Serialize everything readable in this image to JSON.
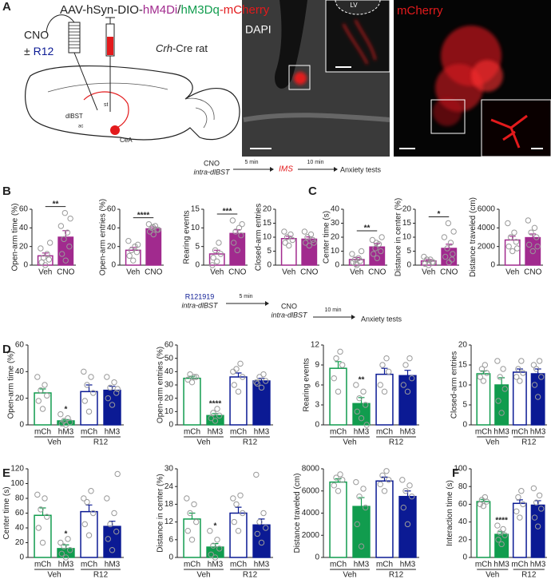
{
  "panel_letters": [
    "A",
    "B",
    "C",
    "D",
    "E",
    "F"
  ],
  "panel_a": {
    "construct": [
      "AAV-hSyn-DIO-",
      "hM4Di",
      "/",
      "hM3Dq",
      "-mCherry"
    ],
    "drug": "CNO",
    "plus_minus": "±",
    "antagonist": "R12",
    "rat": [
      "Crh",
      "-Cre rat"
    ],
    "regions": [
      "dlBST",
      "st",
      "ac",
      "CeA"
    ],
    "stains": [
      "DAPI",
      "mCherry"
    ],
    "ventricle": "LV"
  },
  "timeline_1": {
    "drug": "CNO",
    "route": "intra-dlBST",
    "delay_1": "5 min",
    "stress": "IMS",
    "delay_2": "10 min",
    "tests": "Anxiety tests"
  },
  "timeline_2": {
    "antagonist": "R121919",
    "route_1": "intra-dlBST",
    "delay_1": "5 min",
    "drug": "CNO",
    "route_2": "intra-dlBST",
    "delay_2": "10 min",
    "tests": "Anxiety tests"
  },
  "chart_data": [
    {
      "type": "bar",
      "ylabel": "Open-arm time (%)",
      "categories": [
        "Veh",
        "CNO"
      ],
      "values": [
        10,
        30
      ],
      "errors": [
        3,
        7
      ],
      "points": [
        [
          0,
          3,
          6,
          8,
          12,
          18,
          24
        ],
        [
          5,
          12,
          20,
          28,
          35,
          42,
          50,
          56
        ]
      ],
      "colors": [
        "#a12a8e",
        "#a12a8e"
      ],
      "filled": [
        false,
        true
      ],
      "ylim": [
        0,
        60
      ],
      "yticks": [
        0,
        20,
        40,
        60
      ],
      "annotations": [
        {
          "text": "**",
          "bracket": [
            0,
            1
          ]
        }
      ]
    },
    {
      "type": "bar",
      "ylabel": "Open-arm entries (%)",
      "categories": [
        "Veh",
        "CNO"
      ],
      "values": [
        16,
        39
      ],
      "errors": [
        3,
        2
      ],
      "points": [
        [
          5,
          10,
          14,
          16,
          20,
          26,
          22
        ],
        [
          33,
          36,
          38,
          40,
          42,
          44,
          38,
          41
        ]
      ],
      "colors": [
        "#a12a8e",
        "#a12a8e"
      ],
      "filled": [
        false,
        true
      ],
      "ylim": [
        0,
        60
      ],
      "yticks": [
        0,
        20,
        40,
        60
      ],
      "annotations": [
        {
          "text": "****",
          "bracket": [
            0,
            1
          ]
        }
      ]
    },
    {
      "type": "bar",
      "ylabel": "Rearing events",
      "categories": [
        "Veh",
        "CNO"
      ],
      "values": [
        3,
        8.5
      ],
      "errors": [
        1,
        1
      ],
      "points": [
        [
          1,
          2,
          3,
          4,
          6,
          0
        ],
        [
          4,
          6,
          8,
          9,
          10,
          12,
          11
        ]
      ],
      "colors": [
        "#a12a8e",
        "#a12a8e"
      ],
      "filled": [
        false,
        true
      ],
      "ylim": [
        0,
        15
      ],
      "yticks": [
        0,
        5,
        10,
        15
      ],
      "annotations": [
        {
          "text": "***",
          "bracket": [
            0,
            1
          ]
        }
      ]
    },
    {
      "type": "bar",
      "ylabel": "Closed-arm entries",
      "categories": [
        "Veh",
        "CNO"
      ],
      "values": [
        9.5,
        9.3
      ],
      "errors": [
        0.8,
        0.8
      ],
      "points": [
        [
          7,
          8,
          9,
          10,
          11,
          12
        ],
        [
          7,
          8,
          9,
          10,
          11,
          12,
          8
        ]
      ],
      "colors": [
        "#a12a8e",
        "#a12a8e"
      ],
      "filled": [
        false,
        true
      ],
      "ylim": [
        0,
        20
      ],
      "yticks": [
        0,
        5,
        10,
        15,
        20
      ],
      "annotations": []
    },
    {
      "type": "bar",
      "ylabel": "Center time (s)",
      "categories": [
        "Veh",
        "CNO"
      ],
      "values": [
        4,
        13
      ],
      "errors": [
        1.5,
        2.5
      ],
      "points": [
        [
          0,
          2,
          3,
          4,
          5,
          8,
          10,
          1
        ],
        [
          5,
          8,
          10,
          12,
          15,
          18,
          20,
          16
        ]
      ],
      "colors": [
        "#a12a8e",
        "#a12a8e"
      ],
      "filled": [
        false,
        true
      ],
      "ylim": [
        0,
        40
      ],
      "yticks": [
        0,
        10,
        20,
        30,
        40
      ],
      "annotations": [
        {
          "text": "**",
          "bracket": [
            0,
            1
          ]
        }
      ]
    },
    {
      "type": "bar",
      "ylabel": "Distance in center (%)",
      "categories": [
        "Veh",
        "CNO"
      ],
      "values": [
        1.5,
        6
      ],
      "errors": [
        0.5,
        1.5
      ],
      "points": [
        [
          0,
          0.5,
          1,
          2,
          2,
          3,
          1
        ],
        [
          1,
          3,
          4,
          6,
          8,
          10,
          12,
          15,
          2
        ]
      ],
      "colors": [
        "#a12a8e",
        "#a12a8e"
      ],
      "filled": [
        false,
        true
      ],
      "ylim": [
        0,
        20
      ],
      "yticks": [
        0,
        5,
        10,
        15,
        20
      ],
      "annotations": [
        {
          "text": "*",
          "bracket": [
            0,
            1
          ]
        }
      ]
    },
    {
      "type": "bar",
      "ylabel": "Distance traveled (cm)",
      "categories": [
        "Veh",
        "CNO"
      ],
      "values": [
        2700,
        2950
      ],
      "errors": [
        400,
        400
      ],
      "points": [
        [
          1500,
          2000,
          2500,
          3000,
          3500,
          4500,
          1800
        ],
        [
          1500,
          2200,
          3000,
          3500,
          4000,
          4800,
          2000
        ]
      ],
      "colors": [
        "#a12a8e",
        "#a12a8e"
      ],
      "filled": [
        false,
        true
      ],
      "ylim": [
        0,
        6000
      ],
      "yticks": [
        0,
        2000,
        4000,
        6000
      ],
      "annotations": []
    },
    {
      "type": "bar",
      "ylabel": "Open-arm time (%)",
      "categories": [
        "mCh",
        "hM3",
        "mCh",
        "hM3"
      ],
      "groups": [
        {
          "name": "Veh",
          "span": [
            0,
            1
          ]
        },
        {
          "name": "R12",
          "span": [
            2,
            3
          ]
        }
      ],
      "values": [
        24,
        3,
        25,
        26
      ],
      "errors": [
        3,
        1,
        5,
        3
      ],
      "points": [
        [
          12,
          18,
          22,
          26,
          30,
          36
        ],
        [
          0,
          1,
          2,
          3,
          5,
          8
        ],
        [
          10,
          18,
          24,
          30,
          36,
          40
        ],
        [
          15,
          20,
          24,
          28,
          32,
          36,
          27
        ]
      ],
      "colors": [
        "#119c4e",
        "#119c4e",
        "#0b1a94",
        "#0b1a94"
      ],
      "filled": [
        false,
        true,
        false,
        true
      ],
      "ylim": [
        0,
        60
      ],
      "yticks": [
        0,
        20,
        40,
        60
      ],
      "annotations": [
        {
          "text": "*",
          "index": 1
        }
      ]
    },
    {
      "type": "bar",
      "ylabel": "Open-arm entries (%)",
      "categories": [
        "mCh",
        "hM3",
        "mCh",
        "hM3"
      ],
      "groups": [
        {
          "name": "Veh",
          "span": [
            0,
            1
          ]
        },
        {
          "name": "R12",
          "span": [
            2,
            3
          ]
        }
      ],
      "values": [
        35,
        7,
        36,
        33
      ],
      "errors": [
        1.5,
        1.5,
        3,
        2
      ],
      "points": [
        [
          32,
          34,
          36,
          38,
          36
        ],
        [
          3,
          5,
          7,
          9,
          12
        ],
        [
          25,
          30,
          36,
          42,
          46,
          40
        ],
        [
          28,
          31,
          33,
          36,
          38,
          32
        ]
      ],
      "colors": [
        "#119c4e",
        "#119c4e",
        "#0b1a94",
        "#0b1a94"
      ],
      "filled": [
        false,
        true,
        false,
        true
      ],
      "ylim": [
        0,
        60
      ],
      "yticks": [
        0,
        10,
        20,
        30,
        40,
        50,
        60
      ],
      "annotations": [
        {
          "text": "****",
          "index": 1
        }
      ]
    },
    {
      "type": "bar",
      "ylabel": "Rearing events",
      "categories": [
        "mCh",
        "hM3",
        "mCh",
        "hM3"
      ],
      "groups": [
        {
          "name": "Veh",
          "span": [
            0,
            1
          ]
        },
        {
          "name": "R12",
          "span": [
            2,
            3
          ]
        }
      ],
      "values": [
        8.5,
        3.2,
        7.6,
        7.4
      ],
      "errors": [
        1,
        0.9,
        0.9,
        0.8
      ],
      "points": [
        [
          5,
          7,
          9,
          10,
          11
        ],
        [
          1,
          2,
          3,
          4,
          5,
          6,
          0
        ],
        [
          5,
          6,
          8,
          9,
          10
        ],
        [
          5,
          6,
          7,
          9,
          10
        ]
      ],
      "colors": [
        "#119c4e",
        "#119c4e",
        "#0b1a94",
        "#0b1a94"
      ],
      "filled": [
        false,
        true,
        false,
        true
      ],
      "ylim": [
        0,
        12
      ],
      "yticks": [
        0,
        3,
        6,
        9,
        12
      ],
      "annotations": [
        {
          "text": "**",
          "index": 1
        }
      ]
    },
    {
      "type": "bar",
      "ylabel": "Closed-arm entries",
      "categories": [
        "mCh",
        "hM3",
        "mCh",
        "hM3"
      ],
      "groups": [
        {
          "name": "Veh",
          "span": [
            0,
            1
          ]
        },
        {
          "name": "R12",
          "span": [
            2,
            3
          ]
        }
      ],
      "values": [
        12.8,
        10,
        13.2,
        12.8
      ],
      "errors": [
        0.7,
        1.8,
        0.8,
        1.2
      ],
      "points": [
        [
          11,
          12,
          13,
          14,
          15
        ],
        [
          3,
          6,
          9,
          12,
          14,
          16
        ],
        [
          11,
          12,
          13,
          14,
          16
        ],
        [
          7,
          10,
          12,
          14,
          16,
          15
        ]
      ],
      "colors": [
        "#119c4e",
        "#119c4e",
        "#0b1a94",
        "#0b1a94"
      ],
      "filled": [
        false,
        true,
        false,
        true
      ],
      "ylim": [
        0,
        20
      ],
      "yticks": [
        0,
        5,
        10,
        15,
        20
      ],
      "annotations": []
    },
    {
      "type": "bar",
      "ylabel": "Center time (s)",
      "categories": [
        "mCh",
        "hM3",
        "mCh",
        "hM3"
      ],
      "groups": [
        {
          "name": "Veh",
          "span": [
            0,
            1
          ]
        },
        {
          "name": "R12",
          "span": [
            2,
            3
          ]
        }
      ],
      "values": [
        57,
        12,
        62,
        42
      ],
      "errors": [
        10,
        5,
        9,
        7
      ],
      "points": [
        [
          20,
          40,
          55,
          65,
          80,
          85
        ],
        [
          0,
          5,
          10,
          15,
          25,
          20
        ],
        [
          30,
          45,
          60,
          75,
          90,
          80
        ],
        [
          10,
          25,
          35,
          45,
          60,
          80,
          113
        ]
      ],
      "colors": [
        "#119c4e",
        "#119c4e",
        "#0b1a94",
        "#0b1a94"
      ],
      "filled": [
        false,
        true,
        false,
        true
      ],
      "ylim": [
        0,
        120
      ],
      "yticks": [
        0,
        20,
        40,
        60,
        80,
        100,
        120
      ],
      "annotations": [
        {
          "text": "*",
          "index": 1
        }
      ]
    },
    {
      "type": "bar",
      "ylabel": "Distance in center (%)",
      "categories": [
        "mCh",
        "hM3",
        "mCh",
        "hM3"
      ],
      "groups": [
        {
          "name": "Veh",
          "span": [
            0,
            1
          ]
        },
        {
          "name": "R12",
          "span": [
            2,
            3
          ]
        }
      ],
      "values": [
        13,
        3.5,
        15,
        11
      ],
      "errors": [
        2,
        1.2,
        2,
        2
      ],
      "points": [
        [
          6,
          9,
          12,
          15,
          18,
          20
        ],
        [
          0,
          1,
          3,
          4,
          6,
          9
        ],
        [
          9,
          12,
          15,
          18,
          21,
          20
        ],
        [
          5,
          8,
          10,
          12,
          15,
          28
        ]
      ],
      "colors": [
        "#119c4e",
        "#119c4e",
        "#0b1a94",
        "#0b1a94"
      ],
      "filled": [
        false,
        true,
        false,
        true
      ],
      "ylim": [
        0,
        30
      ],
      "yticks": [
        0,
        6,
        12,
        18,
        24,
        30
      ],
      "annotations": [
        {
          "text": "*",
          "index": 1
        }
      ]
    },
    {
      "type": "bar",
      "ylabel": "Distance traveled (cm)",
      "categories": [
        "mCh",
        "hM3",
        "mCh",
        "hM3"
      ],
      "groups": [
        {
          "name": "Veh",
          "span": [
            0,
            1
          ]
        },
        {
          "name": "R12",
          "span": [
            2,
            3
          ]
        }
      ],
      "values": [
        6800,
        4600,
        6900,
        5500
      ],
      "errors": [
        300,
        800,
        350,
        500
      ],
      "points": [
        [
          6000,
          6500,
          7000,
          7200,
          7500
        ],
        [
          1000,
          3000,
          4500,
          5500,
          6200,
          6800
        ],
        [
          6000,
          6600,
          7000,
          7400,
          7800
        ],
        [
          3000,
          4500,
          5500,
          6000,
          6500,
          7000
        ]
      ],
      "colors": [
        "#119c4e",
        "#119c4e",
        "#0b1a94",
        "#0b1a94"
      ],
      "filled": [
        false,
        true,
        false,
        true
      ],
      "ylim": [
        0,
        8000
      ],
      "yticks": [
        0,
        2000,
        4000,
        6000,
        8000
      ],
      "annotations": []
    },
    {
      "type": "bar",
      "ylabel": "Interaction time (s)",
      "categories": [
        "mCh",
        "hM3",
        "mCh",
        "hM3"
      ],
      "groups": [
        {
          "name": "Veh",
          "span": [
            0,
            1
          ]
        },
        {
          "name": "R12",
          "span": [
            2,
            3
          ]
        }
      ],
      "values": [
        63,
        26,
        61,
        59
      ],
      "errors": [
        2.5,
        3,
        4,
        5
      ],
      "points": [
        [
          58,
          60,
          63,
          65,
          68
        ],
        [
          15,
          20,
          25,
          28,
          32,
          36
        ],
        [
          45,
          52,
          60,
          68,
          75
        ],
        [
          35,
          45,
          55,
          62,
          70,
          78
        ]
      ],
      "colors": [
        "#119c4e",
        "#119c4e",
        "#0b1a94",
        "#0b1a94"
      ],
      "filled": [
        false,
        true,
        false,
        true
      ],
      "ylim": [
        0,
        100
      ],
      "yticks": [
        0,
        20,
        40,
        60,
        80,
        100
      ],
      "annotations": [
        {
          "text": "****",
          "index": 1
        }
      ]
    }
  ]
}
